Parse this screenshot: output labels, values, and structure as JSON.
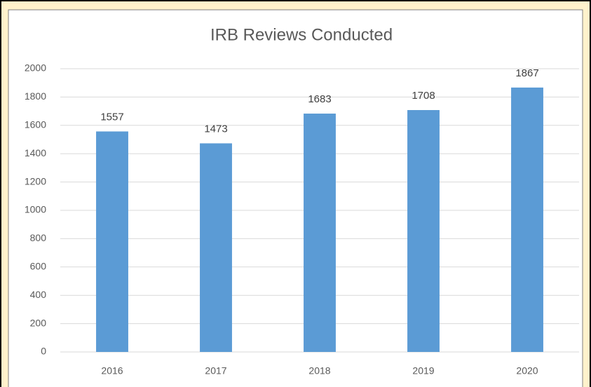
{
  "chart_data": {
    "type": "bar",
    "title": "IRB Reviews Conducted",
    "categories": [
      "2016",
      "2017",
      "2018",
      "2019",
      "2020"
    ],
    "values": [
      1557,
      1473,
      1683,
      1708,
      1867
    ],
    "color": "#5b9bd5",
    "ylim": [
      0,
      2000
    ],
    "yticks": [
      0,
      200,
      400,
      600,
      800,
      1000,
      1200,
      1400,
      1600,
      1800,
      2000
    ],
    "grid": true
  }
}
